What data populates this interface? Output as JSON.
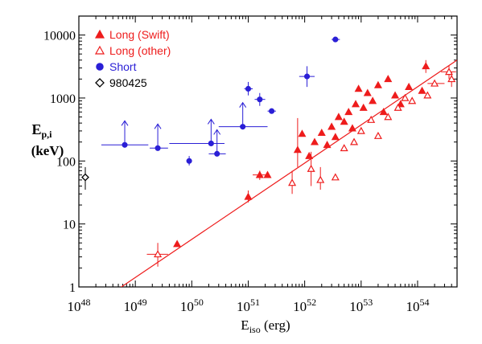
{
  "chart_data": {
    "type": "scatter",
    "xlabel": {
      "main": "E",
      "sub": "iso",
      "unit": " (erg)"
    },
    "ylabel": {
      "main": "E",
      "sub": "p,i",
      "unit": "(keV)"
    },
    "x_scale": "log",
    "y_scale": "log",
    "xlim": [
      1e+48,
      5e+54
    ],
    "ylim": [
      1,
      20000
    ],
    "x_tick_labels": [
      {
        "value": 1e+48,
        "base": "10",
        "exp": "48"
      },
      {
        "value": 1e+49,
        "base": "10",
        "exp": "49"
      },
      {
        "value": 1e+50,
        "base": "10",
        "exp": "50"
      },
      {
        "value": 1e+51,
        "base": "10",
        "exp": "51"
      },
      {
        "value": 1e+52,
        "base": "10",
        "exp": "52"
      },
      {
        "value": 1e+53,
        "base": "10",
        "exp": "53"
      },
      {
        "value": 1e+54,
        "base": "10",
        "exp": "54"
      }
    ],
    "y_tick_labels": [
      {
        "value": 1,
        "label": "1"
      },
      {
        "value": 10,
        "label": "10"
      },
      {
        "value": 100,
        "label": "100"
      },
      {
        "value": 1000,
        "label": "1000"
      },
      {
        "value": 10000,
        "label": "10000"
      }
    ],
    "legend_position": "top-left",
    "legend": [
      {
        "label": "Long (Swift)",
        "marker": "filled-triangle",
        "color": "#ee1c1c"
      },
      {
        "label": "Long (other)",
        "marker": "open-triangle",
        "color": "#ee1c1c"
      },
      {
        "label": "Short",
        "marker": "filled-circle",
        "color": "#2a1fd6"
      },
      {
        "label": "980425",
        "marker": "open-diamond",
        "color": "#000000"
      }
    ],
    "fit_line": {
      "points": [
        [
          1e+48,
          0.35
        ],
        [
          5e+54,
          4000
        ]
      ],
      "color": "#ee1c1c"
    },
    "series": [
      {
        "name": "Long (Swift)",
        "marker": "filled-triangle",
        "color": "#ee1c1c",
        "points": [
          {
            "x": 5.5e+49,
            "y": 4.8
          },
          {
            "x": 1e+51,
            "y": 27,
            "ylo": 22,
            "yhi": 34
          },
          {
            "x": 1.6e+51,
            "y": 60,
            "xlo": 1.2e+51,
            "xhi": 2.2e+51,
            "ylo": 50,
            "yhi": 70
          },
          {
            "x": 2.2e+51,
            "y": 60
          },
          {
            "x": 7.5e+51,
            "y": 150,
            "ylo": 80,
            "yhi": 480
          },
          {
            "x": 9e+51,
            "y": 270
          },
          {
            "x": 1.2e+52,
            "y": 120
          },
          {
            "x": 1.5e+52,
            "y": 200
          },
          {
            "x": 2e+52,
            "y": 280
          },
          {
            "x": 2.5e+52,
            "y": 180
          },
          {
            "x": 3e+52,
            "y": 350
          },
          {
            "x": 3.5e+52,
            "y": 240
          },
          {
            "x": 4e+52,
            "y": 500
          },
          {
            "x": 5e+52,
            "y": 420
          },
          {
            "x": 6e+52,
            "y": 600
          },
          {
            "x": 7e+52,
            "y": 330
          },
          {
            "x": 8e+52,
            "y": 800
          },
          {
            "x": 9e+52,
            "y": 1400
          },
          {
            "x": 1.1e+53,
            "y": 700
          },
          {
            "x": 1.3e+53,
            "y": 1200
          },
          {
            "x": 1.6e+53,
            "y": 900
          },
          {
            "x": 2e+53,
            "y": 1600
          },
          {
            "x": 2.5e+53,
            "y": 600
          },
          {
            "x": 3e+53,
            "y": 2000
          },
          {
            "x": 4e+53,
            "y": 1100
          },
          {
            "x": 5e+53,
            "y": 800
          },
          {
            "x": 7e+53,
            "y": 1500
          },
          {
            "x": 1.2e+54,
            "y": 1300
          },
          {
            "x": 1.4e+54,
            "y": 3200,
            "ylo": 2500,
            "yhi": 4000
          }
        ]
      },
      {
        "name": "Long (other)",
        "marker": "open-triangle",
        "color": "#ee1c1c",
        "points": [
          {
            "x": 2.5e+49,
            "y": 3.3,
            "xlo": 1.6e+49,
            "xhi": 3.8e+49,
            "ylo": 2.1,
            "yhi": 5.0
          },
          {
            "x": 6e+51,
            "y": 45,
            "ylo": 30,
            "yhi": 70
          },
          {
            "x": 1.3e+52,
            "y": 75,
            "ylo": 40,
            "yhi": 140
          },
          {
            "x": 1.9e+52,
            "y": 50,
            "ylo": 35,
            "yhi": 80
          },
          {
            "x": 3.5e+52,
            "y": 55
          },
          {
            "x": 5e+52,
            "y": 160
          },
          {
            "x": 7.5e+52,
            "y": 200
          },
          {
            "x": 1e+53,
            "y": 300
          },
          {
            "x": 1.5e+53,
            "y": 450
          },
          {
            "x": 2e+53,
            "y": 250
          },
          {
            "x": 3e+53,
            "y": 500
          },
          {
            "x": 4.5e+53,
            "y": 700
          },
          {
            "x": 6e+53,
            "y": 1000
          },
          {
            "x": 8e+53,
            "y": 900
          },
          {
            "x": 1.5e+54,
            "y": 1100
          },
          {
            "x": 2e+54,
            "y": 1700,
            "xlo": 1.5e+54,
            "xhi": 3e+54
          },
          {
            "x": 3.6e+54,
            "y": 2600,
            "xlo": 2.6e+54,
            "xhi": 4.8e+54,
            "ylo": 2000,
            "yhi": 3300
          },
          {
            "x": 4e+54,
            "y": 2000,
            "ylo": 1500,
            "yhi": 2600
          }
        ]
      },
      {
        "name": "Short",
        "marker": "filled-circle",
        "color": "#2a1fd6",
        "points": [
          {
            "x": 6.5e+48,
            "y": 180,
            "xlo": 2.5e+48,
            "xhi": 1.7e+49,
            "lower_limit": true
          },
          {
            "x": 2.5e+49,
            "y": 160,
            "xlo": 1.8e+49,
            "xhi": 3.8e+49,
            "lower_limit": true
          },
          {
            "x": 9e+49,
            "y": 100,
            "ylo": 85,
            "yhi": 120
          },
          {
            "x": 2.2e+50,
            "y": 190,
            "xlo": 4e+49,
            "xhi": 3.8e+50,
            "lower_limit": true
          },
          {
            "x": 2.8e+50,
            "y": 130,
            "xlo": 2e+50,
            "xhi": 4e+50,
            "lower_limit": true
          },
          {
            "x": 8e+50,
            "y": 350,
            "xlo": 3e+50,
            "xhi": 2.2e+51,
            "lower_limit": true
          },
          {
            "x": 1e+51,
            "y": 1400,
            "xlo": 8.5e+50,
            "xhi": 1.2e+51,
            "ylo": 1100,
            "yhi": 1800
          },
          {
            "x": 1.6e+51,
            "y": 950,
            "xlo": 1.3e+51,
            "xhi": 2e+51,
            "ylo": 750,
            "yhi": 1200
          },
          {
            "x": 2.6e+51,
            "y": 620,
            "xlo": 2.2e+51,
            "xhi": 3.1e+51
          },
          {
            "x": 1.1e+52,
            "y": 2200,
            "xlo": 8e+51,
            "xhi": 1.5e+52,
            "ylo": 1500,
            "yhi": 3200
          },
          {
            "x": 3.5e+52,
            "y": 8500,
            "xlo": 3e+52,
            "xhi": 4.2e+52
          }
        ]
      },
      {
        "name": "980425",
        "marker": "open-diamond",
        "color": "#000000",
        "points": [
          {
            "x": 1.3e+48,
            "y": 55,
            "xlo": 1.2e+48,
            "xhi": 1.45e+48,
            "ylo": 35,
            "yhi": 80
          }
        ]
      }
    ]
  }
}
